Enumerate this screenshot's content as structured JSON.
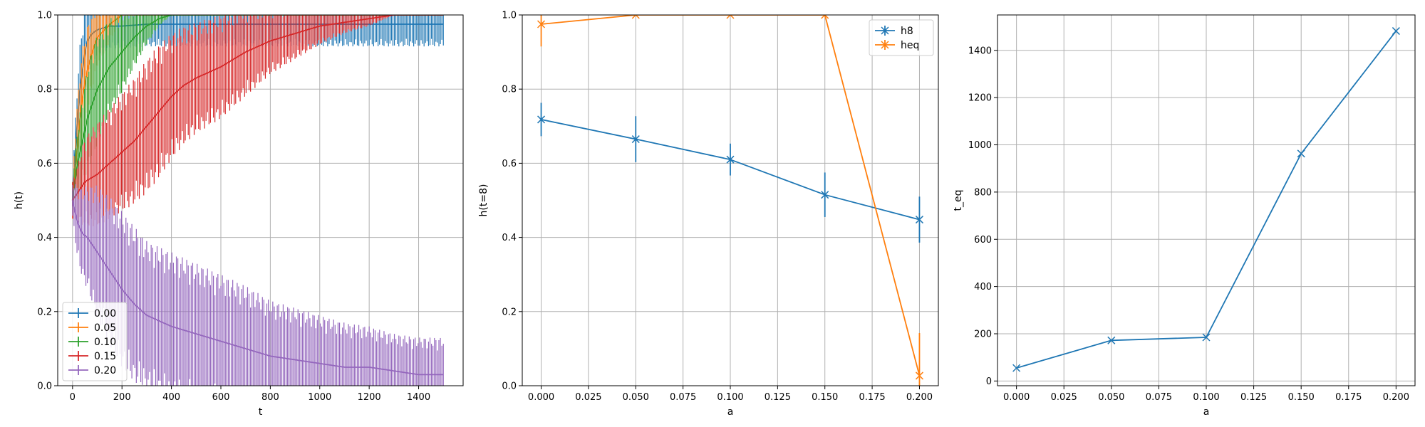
{
  "chart_data": [
    {
      "type": "line",
      "title": "",
      "xlabel": "t",
      "ylabel": "h(t)",
      "xlim": [
        -60,
        1580
      ],
      "ylim": [
        0,
        1
      ],
      "xticks": [
        0,
        200,
        400,
        600,
        800,
        1000,
        1200,
        1400
      ],
      "yticks": [
        0.0,
        0.2,
        0.4,
        0.6,
        0.8,
        1.0
      ],
      "xtick_labels": [
        "0",
        "200",
        "400",
        "600",
        "800",
        "1000",
        "1200",
        "1400"
      ],
      "ytick_labels": [
        "0.0",
        "0.2",
        "0.4",
        "0.6",
        "0.8",
        "1.0"
      ],
      "grid": true,
      "legend_position": "lower-left",
      "error_bars": true,
      "series": [
        {
          "name": "0.00",
          "color": "#1f77b4",
          "x": [
            0,
            10,
            20,
            30,
            40,
            50,
            60,
            80,
            100,
            150,
            200,
            300,
            400,
            600,
            800,
            1000,
            1200,
            1500
          ],
          "y": [
            0.5,
            0.62,
            0.72,
            0.8,
            0.85,
            0.9,
            0.93,
            0.95,
            0.96,
            0.97,
            0.97,
            0.975,
            0.975,
            0.975,
            0.975,
            0.975,
            0.975,
            0.975
          ],
          "err": [
            0.05,
            0.08,
            0.1,
            0.12,
            0.12,
            0.12,
            0.1,
            0.08,
            0.07,
            0.06,
            0.06,
            0.06,
            0.06,
            0.06,
            0.06,
            0.06,
            0.06,
            0.06
          ]
        },
        {
          "name": "0.05",
          "color": "#ff7f0e",
          "x": [
            0,
            10,
            20,
            30,
            40,
            60,
            80,
            100,
            130,
            160,
            200,
            300,
            400
          ],
          "y": [
            0.5,
            0.58,
            0.65,
            0.72,
            0.78,
            0.85,
            0.9,
            0.94,
            0.96,
            0.98,
            1.0,
            1.0,
            1.0
          ],
          "err": [
            0.05,
            0.1,
            0.12,
            0.13,
            0.13,
            0.12,
            0.1,
            0.08,
            0.06,
            0.04,
            0.0,
            0.0,
            0.0
          ]
        },
        {
          "name": "0.10",
          "color": "#2ca02c",
          "x": [
            0,
            20,
            40,
            60,
            80,
            100,
            150,
            200,
            250,
            300,
            350,
            400,
            450
          ],
          "y": [
            0.5,
            0.6,
            0.66,
            0.72,
            0.76,
            0.8,
            0.86,
            0.9,
            0.94,
            0.97,
            0.99,
            1.0,
            1.0
          ],
          "err": [
            0.05,
            0.1,
            0.12,
            0.14,
            0.15,
            0.15,
            0.13,
            0.11,
            0.08,
            0.05,
            0.02,
            0.0,
            0.0
          ]
        },
        {
          "name": "0.15",
          "color": "#d62728",
          "x": [
            0,
            50,
            100,
            150,
            200,
            250,
            300,
            350,
            400,
            450,
            500,
            600,
            700,
            800,
            900,
            1000,
            1100,
            1200,
            1300,
            1400
          ],
          "y": [
            0.5,
            0.55,
            0.57,
            0.6,
            0.63,
            0.66,
            0.7,
            0.74,
            0.78,
            0.81,
            0.83,
            0.86,
            0.9,
            0.93,
            0.95,
            0.97,
            0.98,
            0.99,
            1.0,
            1.0
          ],
          "err": [
            0.05,
            0.12,
            0.14,
            0.15,
            0.16,
            0.17,
            0.18,
            0.18,
            0.17,
            0.16,
            0.15,
            0.14,
            0.12,
            0.09,
            0.07,
            0.05,
            0.03,
            0.02,
            0.0,
            0.0
          ]
        },
        {
          "name": "0.20",
          "color": "#9467bd",
          "x": [
            0,
            20,
            40,
            60,
            80,
            100,
            150,
            200,
            250,
            300,
            400,
            500,
            600,
            700,
            800,
            900,
            1000,
            1100,
            1200,
            1300,
            1400,
            1500
          ],
          "y": [
            0.5,
            0.44,
            0.41,
            0.4,
            0.38,
            0.36,
            0.31,
            0.26,
            0.22,
            0.19,
            0.16,
            0.14,
            0.12,
            0.1,
            0.08,
            0.07,
            0.06,
            0.05,
            0.05,
            0.04,
            0.03,
            0.03
          ],
          "err": [
            0.05,
            0.1,
            0.12,
            0.14,
            0.16,
            0.18,
            0.2,
            0.21,
            0.21,
            0.2,
            0.2,
            0.19,
            0.18,
            0.17,
            0.15,
            0.14,
            0.13,
            0.12,
            0.11,
            0.1,
            0.1,
            0.1
          ]
        }
      ]
    },
    {
      "type": "line",
      "title": "",
      "xlabel": "a",
      "ylabel": "h(t=8)",
      "xlim": [
        -0.01,
        0.21
      ],
      "ylim": [
        0,
        1
      ],
      "xticks": [
        0.0,
        0.025,
        0.05,
        0.075,
        0.1,
        0.125,
        0.15,
        0.175,
        0.2
      ],
      "yticks": [
        0.0,
        0.2,
        0.4,
        0.6,
        0.8,
        1.0
      ],
      "xtick_labels": [
        "0.000",
        "0.025",
        "0.050",
        "0.075",
        "0.100",
        "0.125",
        "0.150",
        "0.175",
        "0.200"
      ],
      "ytick_labels": [
        "0.0",
        "0.2",
        "0.4",
        "0.6",
        "0.8",
        "1.0"
      ],
      "grid": true,
      "legend_position": "top-right",
      "marker": "x",
      "error_bars": true,
      "series": [
        {
          "name": "h8",
          "color": "#1f77b4",
          "x": [
            0.0,
            0.05,
            0.1,
            0.15,
            0.2
          ],
          "y": [
            0.718,
            0.665,
            0.61,
            0.515,
            0.448
          ],
          "err": [
            0.045,
            0.062,
            0.043,
            0.06,
            0.062
          ]
        },
        {
          "name": "heq",
          "color": "#ff7f0e",
          "x": [
            0.0,
            0.05,
            0.1,
            0.15,
            0.2
          ],
          "y": [
            0.975,
            1.0,
            1.0,
            1.0,
            0.027
          ],
          "err": [
            0.06,
            0.0,
            0.0,
            0.0,
            0.115
          ]
        }
      ]
    },
    {
      "type": "line",
      "title": "",
      "xlabel": "a",
      "ylabel": "t_eq",
      "xlim": [
        -0.01,
        0.21
      ],
      "ylim": [
        -20,
        1550
      ],
      "xticks": [
        0.0,
        0.025,
        0.05,
        0.075,
        0.1,
        0.125,
        0.15,
        0.175,
        0.2
      ],
      "yticks": [
        0,
        200,
        400,
        600,
        800,
        1000,
        1200,
        1400
      ],
      "xtick_labels": [
        "0.000",
        "0.025",
        "0.050",
        "0.075",
        "0.100",
        "0.125",
        "0.150",
        "0.175",
        "0.200"
      ],
      "ytick_labels": [
        "0",
        "200",
        "400",
        "600",
        "800",
        "1000",
        "1200",
        "1400"
      ],
      "grid": true,
      "marker": "x",
      "series": [
        {
          "name": "",
          "color": "#1f77b4",
          "x": [
            0.0,
            0.05,
            0.1,
            0.15,
            0.2
          ],
          "y": [
            55,
            172,
            185,
            963,
            1482
          ]
        }
      ]
    }
  ]
}
